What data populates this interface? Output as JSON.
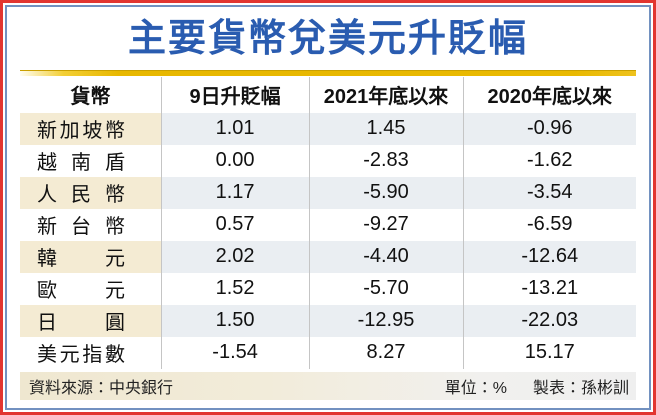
{
  "title": "主要貨幣兌美元升貶幅",
  "table": {
    "headers": [
      "貨幣",
      "9日升貶幅",
      "2021年底以來",
      "2020年底以來"
    ],
    "rows": [
      {
        "name": "新加坡幣",
        "values": [
          "1.01",
          "1.45",
          "-0.96"
        ]
      },
      {
        "name": "越南盾",
        "values": [
          "0.00",
          "-2.83",
          "-1.62"
        ]
      },
      {
        "name": "人民幣",
        "values": [
          "1.17",
          "-5.90",
          "-3.54"
        ]
      },
      {
        "name": "新台幣",
        "values": [
          "0.57",
          "-9.27",
          "-6.59"
        ]
      },
      {
        "name": "韓元",
        "values": [
          "2.02",
          "-4.40",
          "-12.64"
        ]
      },
      {
        "name": "歐元",
        "values": [
          "1.52",
          "-5.70",
          "-13.21"
        ]
      },
      {
        "name": "日圓",
        "values": [
          "1.50",
          "-12.95",
          "-22.03"
        ]
      },
      {
        "name": "美元指數",
        "values": [
          "-1.54",
          "8.27",
          "15.17"
        ]
      }
    ]
  },
  "footer": {
    "source": "資料來源：中央銀行",
    "unit": "單位：%",
    "credit": "製表：孫彬訓"
  },
  "colors": {
    "title_blue": "#2a5cb0",
    "outer_border_red": "#e23530",
    "inner_border_blue": "#7291c0",
    "gold_bar": "#e8b800",
    "stripe_name_cream": "#f4ebd3",
    "stripe_value_gray": "#eaeef2",
    "footer_beige": "#efe7d0"
  },
  "chart_data": {
    "type": "table",
    "title": "主要貨幣兌美元升貶幅",
    "unit": "%",
    "columns": [
      "貨幣",
      "9日升貶幅",
      "2021年底以來",
      "2020年底以來"
    ],
    "rows": [
      [
        "新加坡幣",
        1.01,
        1.45,
        -0.96
      ],
      [
        "越南盾",
        0.0,
        -2.83,
        -1.62
      ],
      [
        "人民幣",
        1.17,
        -5.9,
        -3.54
      ],
      [
        "新台幣",
        0.57,
        -9.27,
        -6.59
      ],
      [
        "韓元",
        2.02,
        -4.4,
        -12.64
      ],
      [
        "歐元",
        1.52,
        -5.7,
        -13.21
      ],
      [
        "日圓",
        1.5,
        -12.95,
        -22.03
      ],
      [
        "美元指數",
        -1.54,
        8.27,
        15.17
      ]
    ],
    "source": "中央銀行",
    "credit": "孫彬訓"
  }
}
